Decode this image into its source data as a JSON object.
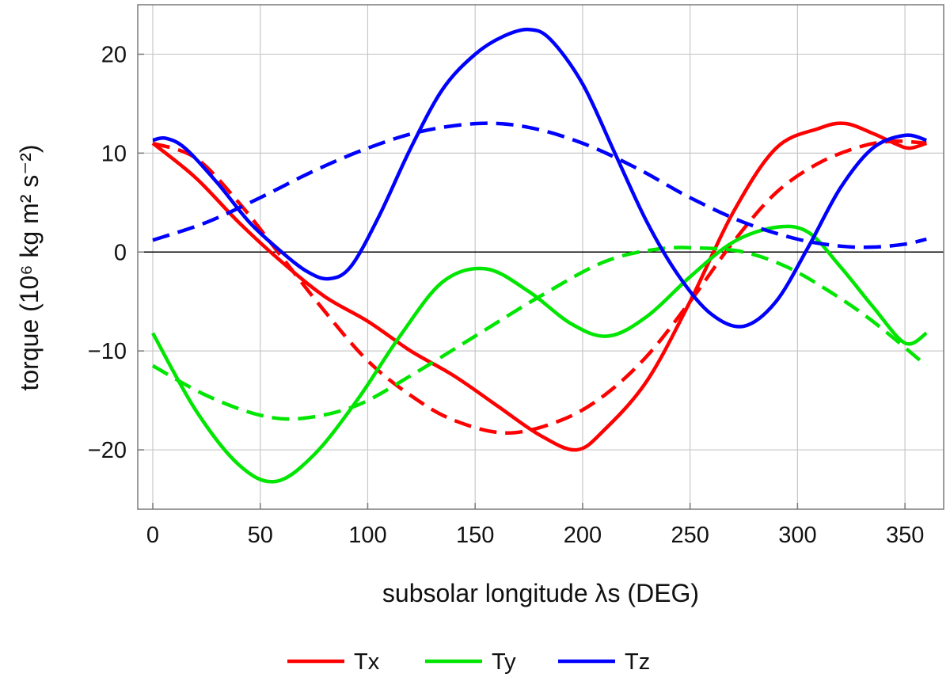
{
  "chart_data": {
    "type": "line",
    "title": "",
    "xlabel": "subsolar longitude λs (DEG)",
    "ylabel": "torque (10⁶ kg m² s⁻²)",
    "xlim": [
      -7,
      368
    ],
    "ylim": [
      -26,
      25
    ],
    "grid": true,
    "legend_position": "bottom",
    "x_ticks": [
      0,
      50,
      100,
      150,
      200,
      250,
      300,
      350
    ],
    "y_ticks": [
      -20,
      -10,
      0,
      10,
      20
    ],
    "legend": [
      {
        "label": "Tx",
        "color": "#ff0000"
      },
      {
        "label": "Ty",
        "color": "#00e600"
      },
      {
        "label": "Tz",
        "color": "#0000ff"
      }
    ],
    "series": [
      {
        "color": "#ff0000",
        "style": "solid",
        "x": [
          0,
          20,
          40,
          60,
          80,
          100,
          120,
          140,
          160,
          180,
          197,
          210,
          230,
          250,
          270,
          290,
          310,
          322,
          335,
          345,
          352,
          360
        ],
        "y": [
          11,
          7.5,
          3,
          -1,
          -4.5,
          -7,
          -10,
          -12.5,
          -15.5,
          -18.5,
          -20,
          -18,
          -13,
          -5,
          4,
          10.5,
          12.5,
          13,
          12,
          11,
          10.5,
          11
        ]
      },
      {
        "color": "#ff0000",
        "style": "dashed",
        "x": [
          0,
          20,
          40,
          60,
          80,
          100,
          120,
          140,
          165,
          190,
          210,
          230,
          250,
          270,
          290,
          310,
          330,
          345,
          360
        ],
        "y": [
          11,
          9.5,
          5,
          -0.5,
          -6,
          -11,
          -14.5,
          -17,
          -18.3,
          -17,
          -14.5,
          -10.5,
          -5,
          1,
          6,
          9,
          10.7,
          11.2,
          11
        ]
      },
      {
        "color": "#00e600",
        "style": "solid",
        "x": [
          0,
          20,
          40,
          57,
          75,
          95,
          115,
          135,
          155,
          175,
          195,
          212,
          230,
          250,
          270,
          290,
          305,
          320,
          335,
          350,
          360
        ],
        "y": [
          -8.2,
          -16,
          -21.5,
          -23.2,
          -20.5,
          -15,
          -8.5,
          -3,
          -1.7,
          -4,
          -7.3,
          -8.5,
          -6.5,
          -2.5,
          1,
          2.5,
          2,
          -1.5,
          -5.5,
          -9.2,
          -8.2
        ]
      },
      {
        "color": "#00e600",
        "style": "dashed",
        "x": [
          0,
          25,
          50,
          70,
          95,
          120,
          150,
          180,
          210,
          235,
          255,
          275,
          295,
          315,
          335,
          360
        ],
        "y": [
          -11.5,
          -14.5,
          -16.5,
          -16.8,
          -15.5,
          -12.5,
          -8.5,
          -4.5,
          -1,
          0.3,
          0.4,
          0,
          -1.5,
          -4,
          -7,
          -11.5
        ]
      },
      {
        "color": "#0000ff",
        "style": "solid",
        "x": [
          0,
          6,
          15,
          30,
          45,
          60,
          72,
          82,
          92,
          105,
          120,
          135,
          150,
          163,
          175,
          185,
          200,
          215,
          230,
          245,
          260,
          275,
          290,
          305,
          320,
          335,
          350,
          360
        ],
        "y": [
          11.3,
          11.5,
          10.5,
          7,
          3,
          0,
          -2,
          -2.7,
          -1.5,
          3.5,
          10.5,
          16.5,
          20,
          21.8,
          22.5,
          21.5,
          17,
          10,
          3,
          -2.5,
          -6.3,
          -7.5,
          -5,
          0.5,
          6.5,
          10.5,
          11.8,
          11.3
        ]
      },
      {
        "color": "#0000ff",
        "style": "dashed",
        "x": [
          0,
          25,
          50,
          75,
          100,
          125,
          152,
          175,
          200,
          225,
          250,
          275,
          300,
          320,
          335,
          350,
          360
        ],
        "y": [
          1.2,
          3,
          5.5,
          8.2,
          10.5,
          12.2,
          13,
          12.6,
          11,
          8.5,
          5.5,
          3,
          1.3,
          0.6,
          0.5,
          0.8,
          1.3
        ]
      }
    ]
  }
}
